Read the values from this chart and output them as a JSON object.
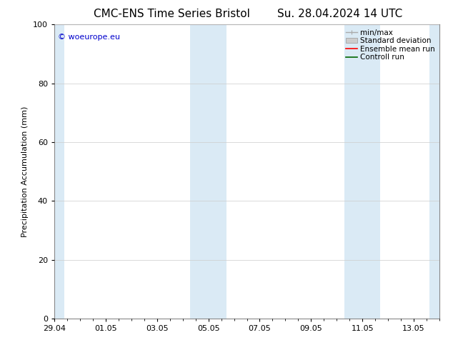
{
  "title_left": "CMC-ENS Time Series Bristol",
  "title_right": "Su. 28.04.2024 14 UTC",
  "ylabel": "Precipitation Accumulation (mm)",
  "ylim": [
    0,
    100
  ],
  "yticks": [
    0,
    20,
    40,
    60,
    80,
    100
  ],
  "xtick_labels": [
    "29.04",
    "01.05",
    "03.05",
    "05.05",
    "07.05",
    "09.05",
    "11.05",
    "13.05"
  ],
  "xtick_positions_days": [
    0,
    2,
    4,
    6,
    8,
    10,
    12,
    14
  ],
  "xlim": [
    0,
    15
  ],
  "shaded_bands": [
    [
      0.0,
      0.4
    ],
    [
      5.3,
      6.0
    ],
    [
      6.0,
      6.7
    ],
    [
      11.3,
      12.0
    ],
    [
      12.0,
      12.7
    ],
    [
      14.6,
      15.0
    ]
  ],
  "shaded_color": "#daeaf5",
  "legend_labels": [
    "min/max",
    "Standard deviation",
    "Ensemble mean run",
    "Controll run"
  ],
  "minmax_color": "#aaaaaa",
  "std_color": "#cccccc",
  "ensemble_color": "#ff0000",
  "control_color": "#006600",
  "watermark_text": "© woeurope.eu",
  "watermark_color": "#0000cc",
  "background_color": "#ffffff",
  "plot_bg_color": "#ffffff",
  "grid_color": "#cccccc",
  "title_fontsize": 11,
  "label_fontsize": 8,
  "tick_fontsize": 8,
  "legend_fontsize": 7.5,
  "watermark_fontsize": 8
}
